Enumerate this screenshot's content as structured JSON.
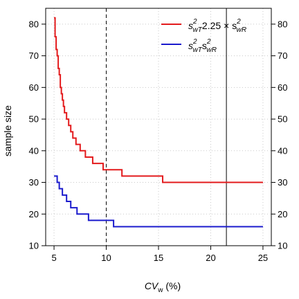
{
  "chart_data": {
    "type": "line",
    "xlabel_main": "CV",
    "xlabel_sub": "w",
    "xlabel_unit": " (%)",
    "ylabel": "sample size",
    "xlim": [
      4.2,
      25.8
    ],
    "ylim": [
      10,
      85
    ],
    "xticks": [
      5,
      10,
      15,
      20,
      25
    ],
    "yticks": [
      10,
      20,
      30,
      40,
      50,
      60,
      70,
      80
    ],
    "grid": true,
    "right_axis": true,
    "vline_dashed_x": 10,
    "vline_solid_x": 21.5,
    "legend_position": "top-right",
    "legend": [
      {
        "label_lhs": "s",
        "label_lhs_sup": "2",
        "label_lhs_sub": "wT",
        "label_rhs": "2.25 × s",
        "label_rhs_sup": "2",
        "label_rhs_sub": "wR",
        "color": "#e31a1c"
      },
      {
        "label_lhs": "s",
        "label_lhs_sup": "2",
        "label_lhs_sub": "wT",
        "label_rhs": "s",
        "label_rhs_sup": "2",
        "label_rhs_sub": "wR",
        "color": "#1a1acd"
      }
    ],
    "series": [
      {
        "color": "#e31a1c",
        "x": [
          5.0,
          5.1,
          5.2,
          5.3,
          5.4,
          5.5,
          5.6,
          5.7,
          5.8,
          5.9,
          6.0,
          6.2,
          6.4,
          6.6,
          6.8,
          7.1,
          7.5,
          8.0,
          8.7,
          9.7,
          11.5,
          15.4,
          25.0
        ],
        "y": [
          82,
          76,
          72,
          70,
          66,
          64,
          60,
          58,
          56,
          54,
          52,
          50,
          48,
          46,
          44,
          42,
          40,
          38,
          36,
          34,
          32,
          30,
          30
        ]
      },
      {
        "color": "#1a1acd",
        "x": [
          5.0,
          5.3,
          5.5,
          5.8,
          6.2,
          6.6,
          7.2,
          8.3,
          10.7,
          25.0
        ],
        "y": [
          32,
          30,
          28,
          26,
          24,
          22,
          20,
          18,
          16,
          16
        ]
      }
    ]
  }
}
